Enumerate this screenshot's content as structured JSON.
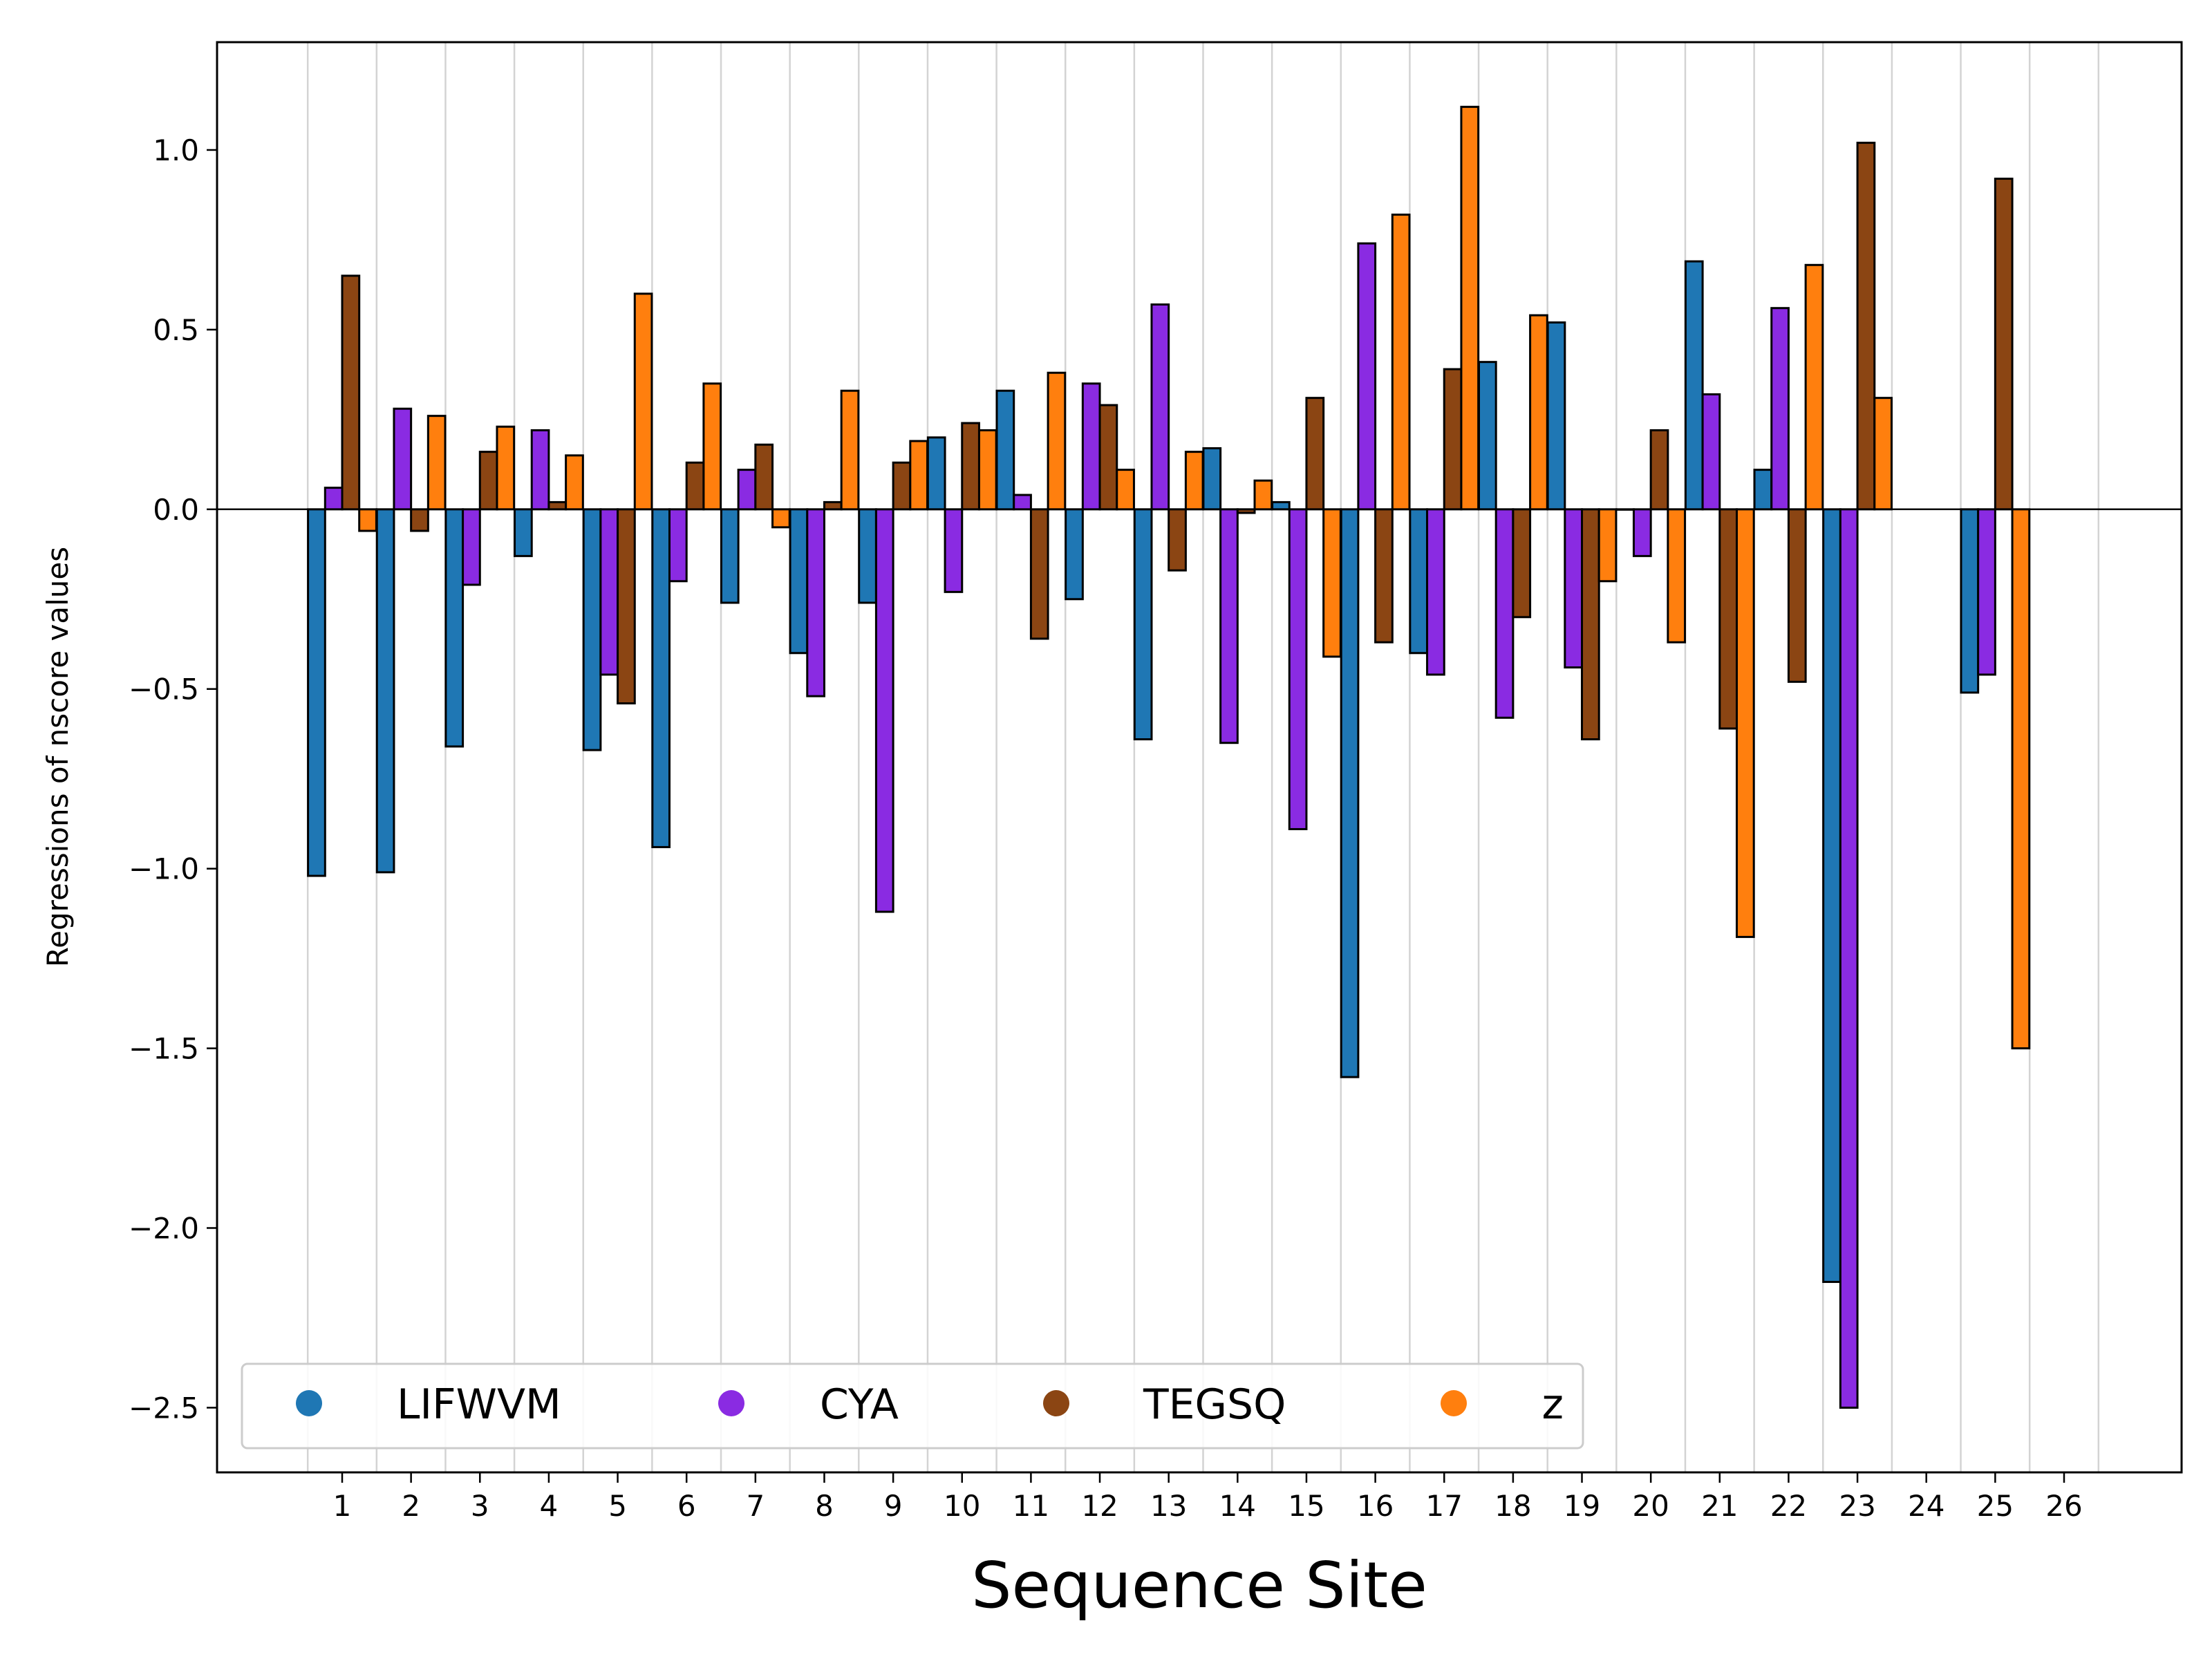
{
  "chart_data": {
    "type": "bar",
    "xlabel": "Sequence Site",
    "ylabel": "Regressions of nscore values",
    "categories": [
      "1",
      "2",
      "3",
      "4",
      "5",
      "6",
      "7",
      "8",
      "9",
      "10",
      "11",
      "12",
      "13",
      "14",
      "15",
      "16",
      "17",
      "18",
      "19",
      "20",
      "21",
      "22",
      "23",
      "24",
      "25",
      "26"
    ],
    "ylim": [
      -2.68,
      1.3
    ],
    "yticks": [
      1.0,
      0.5,
      0.0,
      -0.5,
      -1.0,
      -1.5,
      -2.0,
      -2.5
    ],
    "ytick_labels": [
      "1.0",
      "0.5",
      "0.0",
      "−0.5",
      "−1.0",
      "−1.5",
      "−2.0",
      "−2.5"
    ],
    "grid": "vertical",
    "legend_position": "lower-left",
    "series": [
      {
        "name": "LIFWVM",
        "color": "#1f77b4",
        "values": [
          -1.02,
          -1.01,
          -0.66,
          -0.13,
          -0.67,
          -0.94,
          -0.26,
          -0.4,
          -0.26,
          0.2,
          0.33,
          -0.25,
          -0.64,
          0.17,
          0.02,
          -1.58,
          -0.4,
          0.41,
          0.52,
          0.0,
          0.69,
          0.11,
          -2.15,
          null,
          -0.51,
          null
        ]
      },
      {
        "name": "CYA",
        "color": "#8a2be2",
        "values": [
          0.06,
          0.28,
          -0.21,
          0.22,
          -0.46,
          -0.2,
          0.11,
          -0.52,
          -1.12,
          -0.23,
          0.04,
          0.35,
          0.57,
          -0.65,
          -0.89,
          0.74,
          -0.46,
          -0.58,
          -0.44,
          -0.13,
          0.32,
          0.56,
          -2.5,
          null,
          -0.46,
          null
        ]
      },
      {
        "name": "TEGSQ",
        "color": "#8b4513",
        "values": [
          0.65,
          -0.06,
          0.16,
          0.02,
          -0.54,
          0.13,
          0.18,
          0.02,
          0.13,
          0.24,
          -0.36,
          0.29,
          -0.17,
          -0.01,
          0.31,
          -0.37,
          0.39,
          -0.3,
          -0.64,
          0.22,
          -0.61,
          -0.48,
          1.02,
          null,
          0.92,
          null
        ]
      },
      {
        "name": "z",
        "color": "#ff7f0e",
        "values": [
          -0.06,
          0.26,
          0.23,
          0.15,
          0.6,
          0.35,
          -0.05,
          0.33,
          0.19,
          0.22,
          0.38,
          0.11,
          0.16,
          0.08,
          -0.41,
          0.82,
          1.12,
          0.54,
          -0.2,
          -0.37,
          -1.19,
          0.68,
          0.31,
          null,
          -1.5,
          null
        ]
      }
    ]
  }
}
